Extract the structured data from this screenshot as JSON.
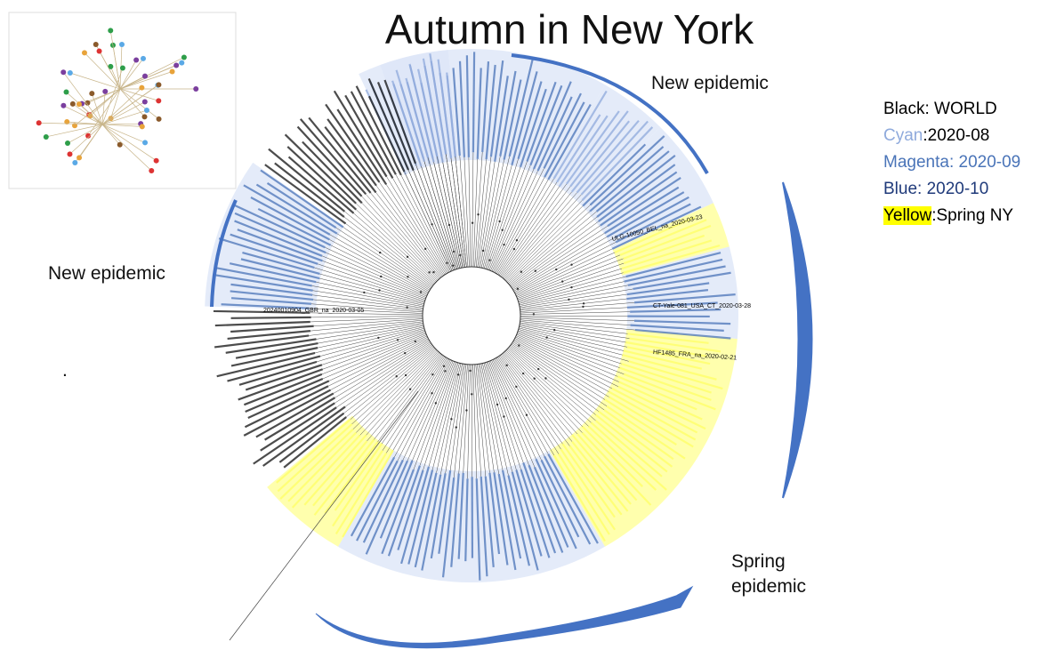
{
  "title": "Autumn in New York",
  "annotations": {
    "top": "New epidemic",
    "left": "New epidemic",
    "bottom_line1": "Spring",
    "bottom_line2": "epidemic",
    "dot": "."
  },
  "legend": {
    "items": [
      {
        "text": "Black: WORLD",
        "color": "#000000"
      },
      {
        "label": "Cyan",
        "text": ":2020-08",
        "color": "#8faadc"
      },
      {
        "text": "Magenta: 2020-09",
        "color": "#4a74b8"
      },
      {
        "text": "Blue: 2020-10",
        "color": "#1f3a7a"
      },
      {
        "label": "Yellow",
        "text": ":Spring NY",
        "color": "#ffff00"
      }
    ]
  },
  "tree_labels": [
    "CT-Yale-081_USA_CT_2020-03-28",
    "HF1485_FRA_na_2020-02-21",
    "ULG-10050_BEL_na_2020-03-23",
    "20240010904_GBR_na_2020-03-05"
  ]
}
